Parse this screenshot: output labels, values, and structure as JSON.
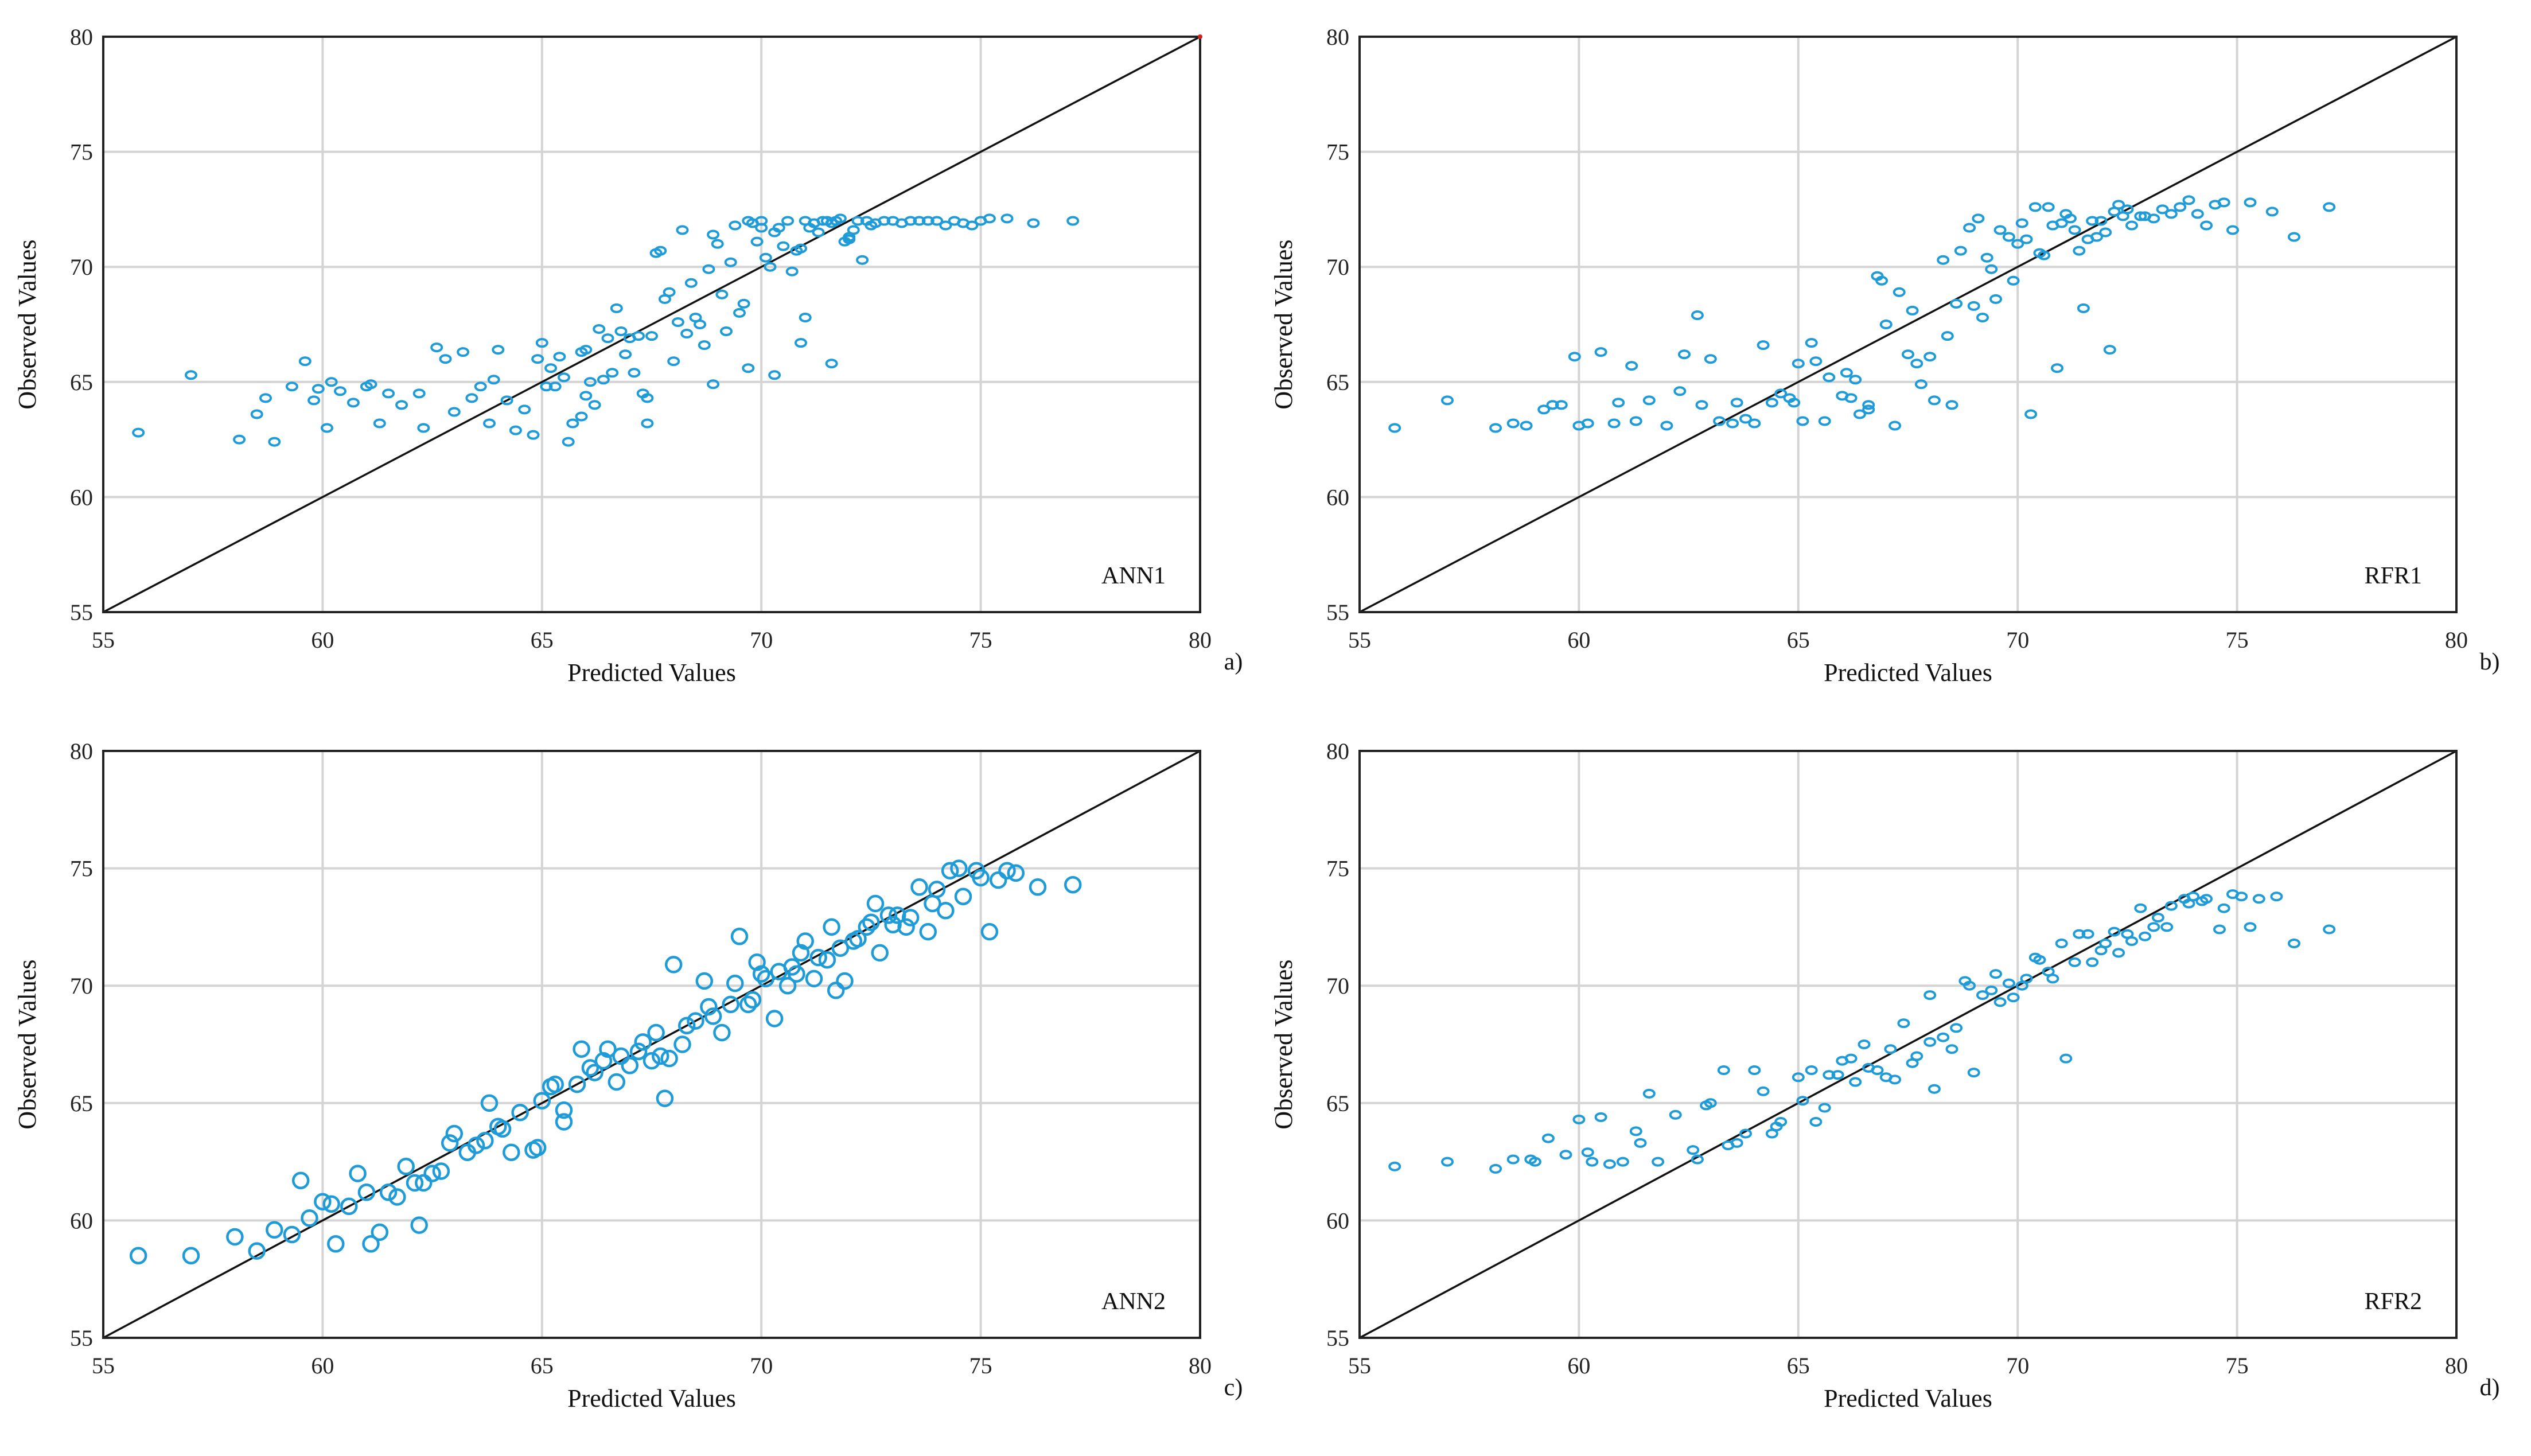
{
  "figure": {
    "panels": [
      {
        "model": "ANN1",
        "panel_label": "a)",
        "xlabel": "Predicted Values",
        "ylabel": "Observed Values"
      },
      {
        "model": "RFR1",
        "panel_label": "b)",
        "xlabel": "Predicted Values",
        "ylabel": "Observed Values"
      },
      {
        "model": "ANN2",
        "panel_label": "c)",
        "xlabel": "Predicted Values",
        "ylabel": "Observed Values"
      },
      {
        "model": "RFR2",
        "panel_label": "d)",
        "xlabel": "Predicted Values",
        "ylabel": "Observed Values"
      }
    ]
  },
  "colors": {
    "marker": "#1f9bd7",
    "identity_line": "#111111",
    "grid": "#d4d4d4"
  },
  "chart_data": [
    {
      "type": "scatter",
      "model": "ANN1",
      "panel_label": "a)",
      "xlabel": "Predicted Values",
      "ylabel": "Observed Values",
      "xlim": [
        55,
        80
      ],
      "ylim": [
        55,
        80
      ],
      "xticks": [
        "55",
        "60",
        "65",
        "70",
        "75",
        "80"
      ],
      "yticks": [
        "55",
        "60",
        "65",
        "70",
        "75",
        "80"
      ],
      "reference_line": "y = x",
      "marker": "circle-open-small",
      "x": [
        55.8,
        57.0,
        58.1,
        58.5,
        58.9,
        59.3,
        59.6,
        59.8,
        60.1,
        60.4,
        60.7,
        61.0,
        61.3,
        61.8,
        62.2,
        62.6,
        63.0,
        63.4,
        63.8,
        64.2,
        64.6,
        65.0,
        65.3,
        65.6,
        65.9,
        66.2,
        66.5,
        66.8,
        67.1,
        67.4,
        67.7,
        68.0,
        68.3,
        68.6,
        68.9,
        69.2,
        69.5,
        69.8,
        70.1,
        70.4,
        70.7,
        71.0,
        71.3,
        71.6,
        71.9,
        72.2,
        72.5,
        72.8,
        73.2,
        73.6,
        74.0,
        74.4,
        74.8,
        75.2,
        75.6,
        76.2,
        77.1,
        64.8,
        65.7,
        66.3,
        66.9,
        67.6,
        68.2,
        69.0,
        69.7,
        70.3,
        70.9,
        71.5,
        72.1,
        65.2,
        66.0,
        66.7,
        67.3,
        67.9,
        68.8,
        69.4,
        70.0,
        70.6,
        71.2,
        71.8,
        72.4,
        73.0,
        73.8,
        74.6,
        62.3,
        63.6,
        64.4,
        65.4,
        66.1,
        67.2,
        68.4,
        69.3,
        69.9,
        70.5,
        71.1,
        71.7,
        65.9,
        66.6,
        67.8,
        68.7,
        69.6,
        70.2,
        70.8,
        71.4,
        72.0,
        60.2,
        61.5,
        62.8,
        63.9,
        64.9,
        65.5,
        66.4,
        67.0,
        67.5,
        68.1,
        68.5,
        69.1,
        69.7,
        70.3,
        70.9,
        71.6,
        72.3,
        58.7,
        59.9,
        61.1,
        63.2,
        64.0,
        65.1,
        66.0,
        67.4,
        68.9,
        70.0,
        71.0,
        72.0,
        72.6,
        73.4,
        74.2,
        75.0
      ],
      "y": [
        62.8,
        65.3,
        62.5,
        63.6,
        62.4,
        64.8,
        65.9,
        64.2,
        63.0,
        64.6,
        64.1,
        64.8,
        63.2,
        64.0,
        64.5,
        66.5,
        63.7,
        64.3,
        63.2,
        64.2,
        63.8,
        66.7,
        64.8,
        62.4,
        66.3,
        64.0,
        66.9,
        67.2,
        65.4,
        64.3,
        70.7,
        65.9,
        67.1,
        67.5,
        71.4,
        67.2,
        68.0,
        71.9,
        70.4,
        71.7,
        69.8,
        72.0,
        71.5,
        71.9,
        71.1,
        72.0,
        71.8,
        72.0,
        71.9,
        72.0,
        72.0,
        72.0,
        71.8,
        72.1,
        72.1,
        71.9,
        72.0,
        62.7,
        63.2,
        67.3,
        66.2,
        70.6,
        71.6,
        71.0,
        72.0,
        71.5,
        70.8,
        72.0,
        71.6,
        65.6,
        66.4,
        68.2,
        64.5,
        68.9,
        69.9,
        71.8,
        72.0,
        72.0,
        71.9,
        72.1,
        72.0,
        72.0,
        72.0,
        71.9,
        63.0,
        64.8,
        62.9,
        66.1,
        65.0,
        67.0,
        69.3,
        70.2,
        71.1,
        70.9,
        71.7,
        72.0,
        63.5,
        65.4,
        68.6,
        66.6,
        68.4,
        70.0,
        70.7,
        72.0,
        71.3,
        65.0,
        64.5,
        66.0,
        65.1,
        66.0,
        65.2,
        65.1,
        66.9,
        67.0,
        67.6,
        67.8,
        68.8,
        65.6,
        65.3,
        66.7,
        65.8,
        70.3,
        64.3,
        64.7,
        64.9,
        66.3,
        66.4,
        64.8,
        64.4,
        63.2,
        64.9,
        71.7,
        67.8,
        71.2,
        71.9,
        72.0,
        71.8,
        72.0
      ]
    },
    {
      "type": "scatter",
      "model": "RFR1",
      "panel_label": "b)",
      "xlabel": "Predicted Values",
      "ylabel": "Observed Values",
      "xlim": [
        55,
        80
      ],
      "ylim": [
        55,
        80
      ],
      "xticks": [
        "55",
        "60",
        "65",
        "70",
        "75",
        "80"
      ],
      "yticks": [
        "55",
        "60",
        "65",
        "70",
        "75",
        "80"
      ],
      "reference_line": "y = x",
      "marker": "circle-open-small",
      "x": [
        55.8,
        57.0,
        58.1,
        58.5,
        58.8,
        59.2,
        59.6,
        59.9,
        60.2,
        60.5,
        60.9,
        61.2,
        61.6,
        62.0,
        62.4,
        62.8,
        63.2,
        63.6,
        64.0,
        64.4,
        64.8,
        65.1,
        65.4,
        65.7,
        66.0,
        66.3,
        66.6,
        66.9,
        67.2,
        67.5,
        67.8,
        68.1,
        68.4,
        68.7,
        69.0,
        69.3,
        69.6,
        69.9,
        70.2,
        70.5,
        70.8,
        71.1,
        71.4,
        71.7,
        72.0,
        72.3,
        72.6,
        72.9,
        73.3,
        73.7,
        74.1,
        74.5,
        74.9,
        75.3,
        75.8,
        76.3,
        77.1,
        64.6,
        65.3,
        66.1,
        66.8,
        67.6,
        68.3,
        69.1,
        69.8,
        70.4,
        71.0,
        71.6,
        72.2,
        62.7,
        63.8,
        65.0,
        66.2,
        67.0,
        68.0,
        68.9,
        69.5,
        70.1,
        70.7,
        71.3,
        71.9,
        72.5,
        73.1,
        73.9,
        74.7,
        60.0,
        61.3,
        62.3,
        63.5,
        64.2,
        65.6,
        66.6,
        67.7,
        68.6,
        69.4,
        70.0,
        70.6,
        71.2,
        71.8,
        72.4,
        59.4,
        60.8,
        63.0,
        64.9,
        66.4,
        67.3,
        68.5,
        69.2,
        70.3,
        70.9,
        71.5,
        72.1,
        72.8,
        73.5,
        74.3
      ],
      "y": [
        63.0,
        64.2,
        63.0,
        63.2,
        63.1,
        63.8,
        64.0,
        66.1,
        63.2,
        66.3,
        64.1,
        65.7,
        64.2,
        63.1,
        66.2,
        64.0,
        63.3,
        64.1,
        63.2,
        64.1,
        64.3,
        63.3,
        65.9,
        65.2,
        64.4,
        65.1,
        63.8,
        69.4,
        63.1,
        66.2,
        64.9,
        64.2,
        67.0,
        70.7,
        68.3,
        70.4,
        71.6,
        69.4,
        71.2,
        70.6,
        71.8,
        72.3,
        70.7,
        72.0,
        71.5,
        72.7,
        71.8,
        72.2,
        72.5,
        72.6,
        72.3,
        72.7,
        71.6,
        72.8,
        72.4,
        71.3,
        72.6,
        64.5,
        66.7,
        65.4,
        69.6,
        68.1,
        70.3,
        72.1,
        71.3,
        72.6,
        71.9,
        71.2,
        72.4,
        67.9,
        63.4,
        65.8,
        64.3,
        67.5,
        66.1,
        71.7,
        68.6,
        71.9,
        72.6,
        71.6,
        72.0,
        72.5,
        72.1,
        72.9,
        72.8,
        63.1,
        63.3,
        64.6,
        63.2,
        66.6,
        63.3,
        64.0,
        65.8,
        68.4,
        69.9,
        71.0,
        70.5,
        72.1,
        71.3,
        72.2,
        64.0,
        63.2,
        66.0,
        64.1,
        63.6,
        68.9,
        64.0,
        67.8,
        63.6,
        65.6,
        68.2,
        66.4,
        72.2,
        72.3,
        71.8
      ]
    },
    {
      "type": "scatter",
      "model": "ANN2",
      "panel_label": "c)",
      "xlabel": "Predicted Values",
      "ylabel": "Observed Values",
      "xlim": [
        55,
        80
      ],
      "ylim": [
        55,
        80
      ],
      "xticks": [
        "55",
        "60",
        "65",
        "70",
        "75",
        "80"
      ],
      "yticks": [
        "55",
        "60",
        "65",
        "70",
        "75",
        "80"
      ],
      "reference_line": "y = x",
      "marker": "circle-open-large",
      "x": [
        55.8,
        57.0,
        58.0,
        58.5,
        58.9,
        59.3,
        59.7,
        60.0,
        60.3,
        60.6,
        61.0,
        61.3,
        61.7,
        62.1,
        62.5,
        62.9,
        63.3,
        63.7,
        64.1,
        64.5,
        64.9,
        65.2,
        65.5,
        65.8,
        66.1,
        66.4,
        66.7,
        67.0,
        67.3,
        67.6,
        67.9,
        68.2,
        68.5,
        68.8,
        69.1,
        69.4,
        69.7,
        70.0,
        70.3,
        70.6,
        70.9,
        71.2,
        71.5,
        71.8,
        72.1,
        72.4,
        72.7,
        73.0,
        73.4,
        73.8,
        74.2,
        74.6,
        75.0,
        75.4,
        75.8,
        76.3,
        77.1,
        60.2,
        61.1,
        62.2,
        63.5,
        64.8,
        65.9,
        67.2,
        68.0,
        69.5,
        70.4,
        71.3,
        72.2,
        73.1,
        74.0,
        74.9,
        59.5,
        60.8,
        61.9,
        62.7,
        64.3,
        65.5,
        66.8,
        67.8,
        68.7,
        69.8,
        70.7,
        71.6,
        72.6,
        73.6,
        74.5,
        75.2,
        61.5,
        63.0,
        64.0,
        65.0,
        66.2,
        67.5,
        68.3,
        69.3,
        70.1,
        71.0,
        71.9,
        72.9,
        73.9,
        62.3,
        63.8,
        65.3,
        66.5,
        67.7,
        68.9,
        69.9,
        70.8,
        71.7,
        72.5,
        73.3,
        74.3,
        75.6
      ],
      "y": [
        58.5,
        58.5,
        59.3,
        58.7,
        59.6,
        59.4,
        60.1,
        60.8,
        59.0,
        60.6,
        61.2,
        59.5,
        61.0,
        61.6,
        62.0,
        63.3,
        62.9,
        63.4,
        63.9,
        64.6,
        63.1,
        65.7,
        64.7,
        65.8,
        66.5,
        66.8,
        65.9,
        66.6,
        67.6,
        68.0,
        66.9,
        67.5,
        68.5,
        69.1,
        68.0,
        70.1,
        69.2,
        70.5,
        68.6,
        70.0,
        71.4,
        70.3,
        71.1,
        71.6,
        71.9,
        72.5,
        71.4,
        72.6,
        72.9,
        72.3,
        73.2,
        73.8,
        74.6,
        74.5,
        74.8,
        74.2,
        74.3,
        60.7,
        59.0,
        59.8,
        63.2,
        63.0,
        67.3,
        67.2,
        70.9,
        72.1,
        70.6,
        71.2,
        72.0,
        73.0,
        74.1,
        74.9,
        61.7,
        62.0,
        62.3,
        62.1,
        62.9,
        64.2,
        67.0,
        65.2,
        70.2,
        69.4,
        70.8,
        72.5,
        73.5,
        74.2,
        75.0,
        72.3,
        61.2,
        63.7,
        64.0,
        65.1,
        66.3,
        66.8,
        68.3,
        69.2,
        70.3,
        71.9,
        70.2,
        73.0,
        73.5,
        61.6,
        65.0,
        65.8,
        67.3,
        67.0,
        68.7,
        71.0,
        70.5,
        69.8,
        72.7,
        72.5,
        74.9,
        74.9
      ]
    },
    {
      "type": "scatter",
      "model": "RFR2",
      "panel_label": "d)",
      "xlabel": "Predicted Values",
      "ylabel": "Observed Values",
      "xlim": [
        55,
        80
      ],
      "ylim": [
        55,
        80
      ],
      "xticks": [
        "55",
        "60",
        "65",
        "70",
        "75",
        "80"
      ],
      "yticks": [
        "55",
        "60",
        "65",
        "70",
        "75",
        "80"
      ],
      "reference_line": "y = x",
      "marker": "circle-open-small",
      "x": [
        55.8,
        57.0,
        58.1,
        58.5,
        58.9,
        59.3,
        59.7,
        60.0,
        60.3,
        60.7,
        61.0,
        61.4,
        61.8,
        62.2,
        62.6,
        63.0,
        63.4,
        63.8,
        64.2,
        64.6,
        65.0,
        65.3,
        65.6,
        65.9,
        66.2,
        66.5,
        66.8,
        67.1,
        67.4,
        67.7,
        68.0,
        68.3,
        68.6,
        68.9,
        69.2,
        69.5,
        69.8,
        70.1,
        70.4,
        70.7,
        71.0,
        71.3,
        71.6,
        71.9,
        72.2,
        72.5,
        72.8,
        73.1,
        73.5,
        73.9,
        74.3,
        74.7,
        75.1,
        75.5,
        75.9,
        76.3,
        77.1,
        62.7,
        63.6,
        64.5,
        65.4,
        66.3,
        67.2,
        68.1,
        69.0,
        69.9,
        70.8,
        71.7,
        72.6,
        73.4,
        74.2,
        74.9,
        60.5,
        61.6,
        62.9,
        64.0,
        65.1,
        66.0,
        67.0,
        68.0,
        68.8,
        69.6,
        70.5,
        71.4,
        72.3,
        73.2,
        74.0,
        75.3,
        59.0,
        60.2,
        61.3,
        63.3,
        64.4,
        65.7,
        66.6,
        67.6,
        68.5,
        69.4,
        70.2,
        71.1,
        72.0,
        72.9,
        73.8,
        74.6
      ],
      "y": [
        62.3,
        62.5,
        62.2,
        62.6,
        62.6,
        63.5,
        62.8,
        64.3,
        62.5,
        62.4,
        62.5,
        63.3,
        62.5,
        64.5,
        63.0,
        65.0,
        63.2,
        63.7,
        65.5,
        64.2,
        66.1,
        66.4,
        64.8,
        66.2,
        66.9,
        67.5,
        66.4,
        67.3,
        68.4,
        67.0,
        69.6,
        67.8,
        68.2,
        70.0,
        69.6,
        70.5,
        70.1,
        70.0,
        71.2,
        70.6,
        71.8,
        71.0,
        72.2,
        71.5,
        72.3,
        72.2,
        73.3,
        72.5,
        73.4,
        73.5,
        73.7,
        73.3,
        73.8,
        73.7,
        73.8,
        71.8,
        72.4,
        62.6,
        63.3,
        64.0,
        64.2,
        65.9,
        66.0,
        65.6,
        66.3,
        69.5,
        70.3,
        71.0,
        71.9,
        72.5,
        73.6,
        73.9,
        64.4,
        65.4,
        64.9,
        66.4,
        65.1,
        66.8,
        66.1,
        67.6,
        70.2,
        69.3,
        71.1,
        72.2,
        71.4,
        72.9,
        73.8,
        72.5,
        62.5,
        62.9,
        63.8,
        66.4,
        63.7,
        66.2,
        66.5,
        66.7,
        67.3,
        69.8,
        70.3,
        66.9,
        71.8,
        72.1,
        73.7,
        72.4
      ]
    }
  ]
}
